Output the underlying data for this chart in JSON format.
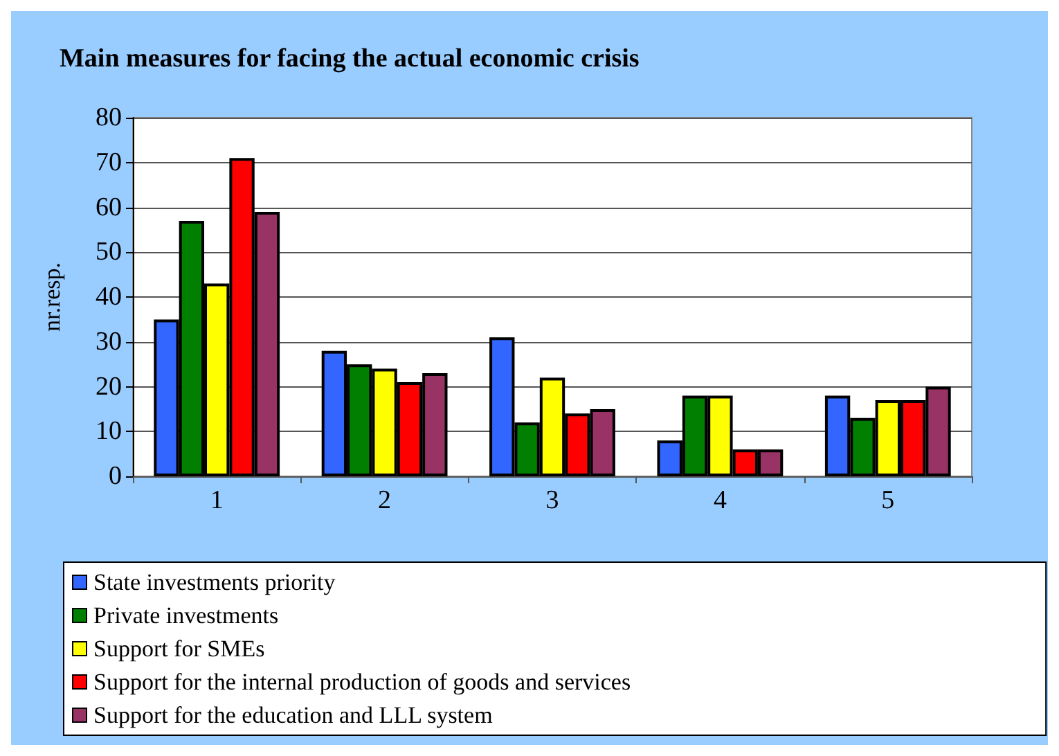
{
  "chart_data": {
    "type": "bar",
    "title": "Main measures for facing the actual economic crisis",
    "ylabel": "nr.resp.",
    "categories": [
      "1",
      "2",
      "3",
      "4",
      "5"
    ],
    "series": [
      {
        "name": "State investments priority",
        "color": "#3366ff",
        "values": [
          35,
          28,
          31,
          8,
          18
        ]
      },
      {
        "name": "Private investments",
        "color": "#007f00",
        "values": [
          57,
          25,
          12,
          18,
          13
        ]
      },
      {
        "name": "Support for SMEs",
        "color": "#ffff00",
        "values": [
          43,
          24,
          22,
          18,
          17
        ]
      },
      {
        "name": "Support for the internal production of goods and services",
        "color": "#ff0000",
        "values": [
          71,
          21,
          14,
          6,
          17
        ]
      },
      {
        "name": "Support for the education and LLL system",
        "color": "#993366",
        "values": [
          59,
          23,
          15,
          6,
          20
        ]
      }
    ],
    "ylim": [
      0,
      80
    ],
    "yticks": [
      0,
      10,
      20,
      30,
      40,
      50,
      60,
      70,
      80
    ],
    "grid": "y",
    "legend": "bottom"
  }
}
